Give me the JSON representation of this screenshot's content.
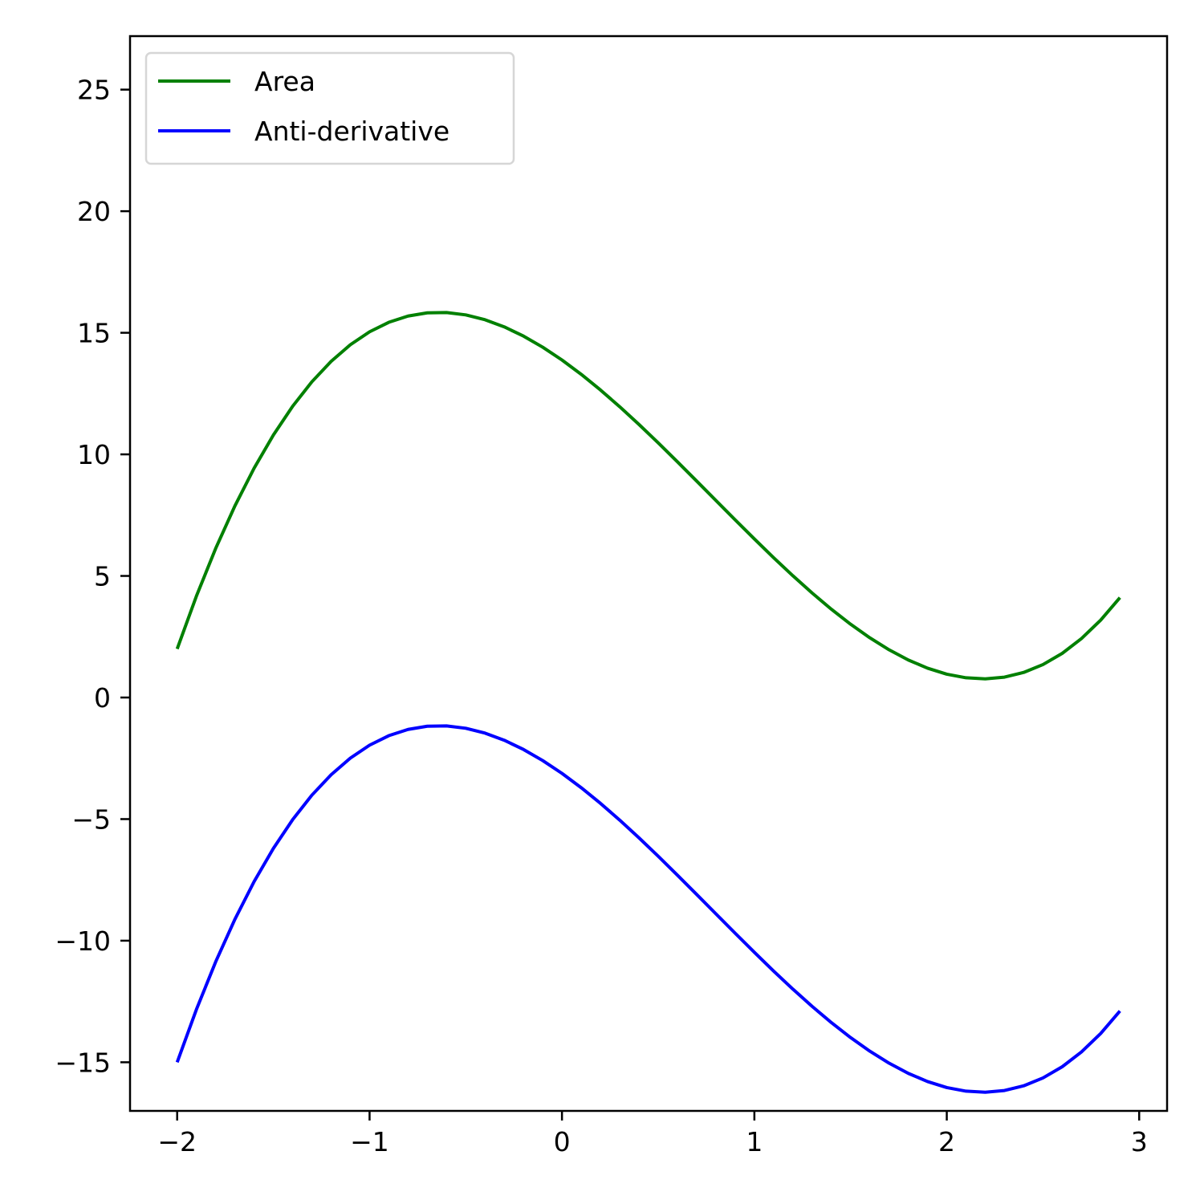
{
  "chart_data": {
    "type": "line",
    "title": "",
    "xlabel": "",
    "ylabel": "",
    "xlim": [
      -2.245,
      3.145
    ],
    "ylim": [
      -17.0,
      27.2
    ],
    "xticks": [
      {
        "value": -2,
        "label": "−2"
      },
      {
        "value": -1,
        "label": "−1"
      },
      {
        "value": 0,
        "label": "0"
      },
      {
        "value": 1,
        "label": "1"
      },
      {
        "value": 2,
        "label": "2"
      },
      {
        "value": 3,
        "label": "3"
      }
    ],
    "yticks": [
      {
        "value": -15,
        "label": "−15"
      },
      {
        "value": -10,
        "label": "−10"
      },
      {
        "value": -5,
        "label": "−5"
      },
      {
        "value": 0,
        "label": "0"
      },
      {
        "value": 5,
        "label": "5"
      },
      {
        "value": 10,
        "label": "10"
      },
      {
        "value": 15,
        "label": "15"
      },
      {
        "value": 20,
        "label": "20"
      },
      {
        "value": 25,
        "label": "25"
      }
    ],
    "grid": false,
    "legend_position": "top-left",
    "x": [
      -2.0,
      -1.9,
      -1.8,
      -1.7,
      -1.6,
      -1.5,
      -1.4,
      -1.3,
      -1.2,
      -1.1,
      -1.0,
      -0.9,
      -0.8,
      -0.7,
      -0.6,
      -0.5,
      -0.4,
      -0.3,
      -0.2,
      -0.1,
      0.0,
      0.1,
      0.2,
      0.3,
      0.4,
      0.5,
      0.6,
      0.7,
      0.8,
      0.9,
      1.0,
      1.1,
      1.2,
      1.3,
      1.4,
      1.5,
      1.6,
      1.7,
      1.8,
      1.9,
      2.0,
      2.1,
      2.2,
      2.3,
      2.4,
      2.5,
      2.6,
      2.7,
      2.8,
      2.9
    ],
    "series": [
      {
        "name": "Area",
        "color": "#008000",
        "values": [
          2.0,
          4.171,
          6.128,
          7.879,
          9.432,
          10.795,
          11.976,
          12.983,
          13.824,
          14.507,
          15.04,
          15.431,
          15.688,
          15.819,
          15.832,
          15.735,
          15.536,
          15.243,
          14.864,
          14.407,
          13.88,
          13.291,
          12.648,
          11.959,
          11.232,
          10.475,
          9.696,
          8.903,
          8.104,
          7.307,
          6.52,
          5.751,
          5.008,
          4.299,
          3.632,
          3.015,
          2.456,
          1.963,
          1.544,
          1.207,
          0.96,
          0.811,
          0.768,
          0.839,
          1.032,
          1.355,
          1.816,
          2.423,
          3.184,
          4.107
        ]
      },
      {
        "name": "Anti-derivative",
        "color": "#0000ff",
        "values": [
          -15.0,
          -12.829,
          -10.872,
          -9.121,
          -7.568,
          -6.205,
          -5.024,
          -4.017,
          -3.176,
          -2.493,
          -1.96,
          -1.569,
          -1.312,
          -1.181,
          -1.168,
          -1.265,
          -1.464,
          -1.757,
          -2.136,
          -2.593,
          -3.12,
          -3.709,
          -4.352,
          -5.041,
          -5.768,
          -6.525,
          -7.304,
          -8.097,
          -8.896,
          -9.693,
          -10.48,
          -11.249,
          -11.992,
          -12.701,
          -13.368,
          -13.985,
          -14.544,
          -15.037,
          -15.456,
          -15.793,
          -16.04,
          -16.189,
          -16.232,
          -16.161,
          -15.968,
          -15.645,
          -15.184,
          -14.577,
          -13.816,
          -12.893
        ]
      }
    ]
  }
}
